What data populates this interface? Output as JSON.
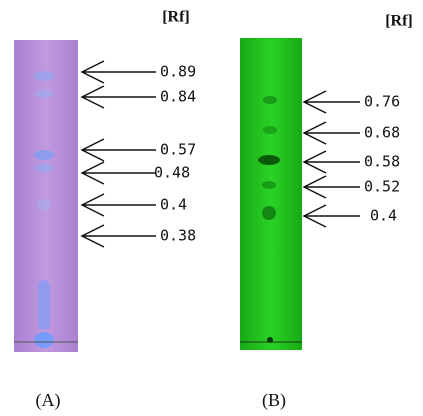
{
  "panels": [
    {
      "header": "[Rf]",
      "labels": [
        "0.89",
        "0.84",
        "0.57",
        "0.48",
        "0.4",
        "0.38"
      ],
      "caption": "(A)"
    },
    {
      "header": "[Rf]",
      "labels": [
        "0.76",
        "0.68",
        "0.58",
        "0.52",
        "0.4"
      ],
      "caption": "(B)"
    }
  ]
}
